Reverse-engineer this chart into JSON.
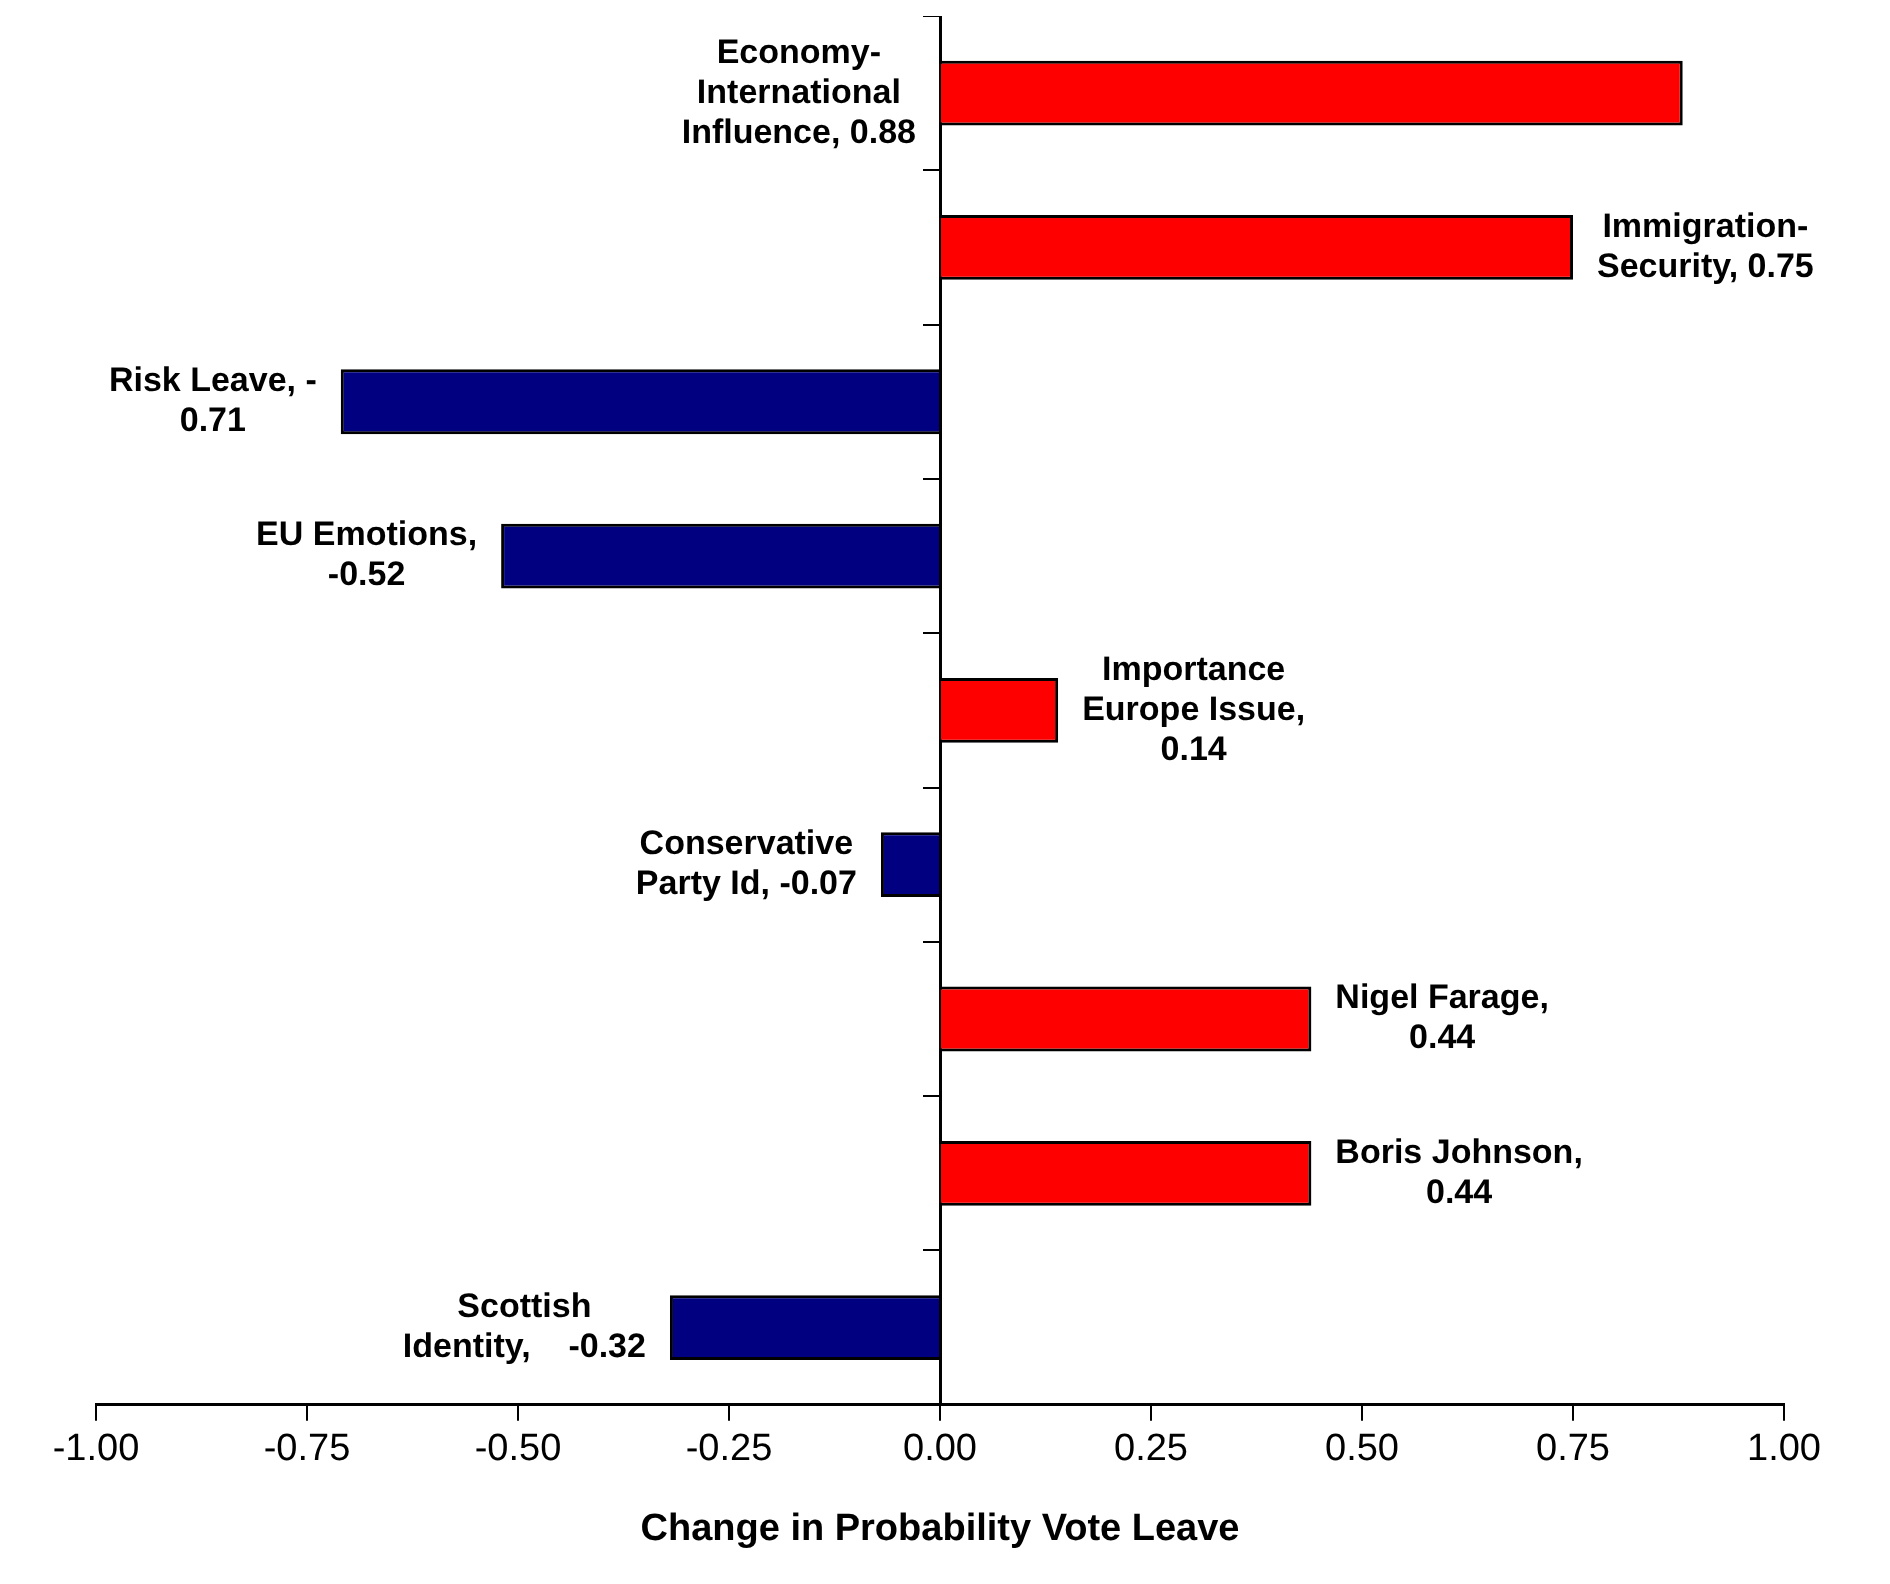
{
  "chart_data": {
    "type": "bar",
    "orientation": "horizontal",
    "xlabel": "Change in Probability Vote Leave",
    "categories": [
      null,
      null,
      null,
      null,
      null,
      null,
      null,
      null,
      null
    ],
    "values": [
      0.88,
      0.75,
      -0.71,
      -0.52,
      0.14,
      -0.07,
      0.44,
      0.44,
      -0.32
    ],
    "colors": [
      "#ff0000",
      "#ff0000",
      "#000080",
      "#000080",
      "#ff0000",
      "#000080",
      "#ff0000",
      "#ff0000",
      "#000080"
    ],
    "value_labels": [
      "Economy-\nInternational\nInfluence, 0.88",
      "Immigration-\nSecurity, 0.75",
      "Risk Leave, -\n0.71",
      "EU Emotions,\n-0.52",
      "Importance\nEurope Issue,\n0.14",
      "Conservative\nParty Id, -0.07",
      "Nigel Farage,\n0.44",
      "Boris Johnson,\n0.44",
      "Scottish\nIdentity,    -0.32"
    ],
    "xlim": [
      -1,
      1
    ],
    "xticks": [
      {
        "value": -1,
        "label": "-1.00"
      },
      {
        "value": -0.75,
        "label": "-0.75"
      },
      {
        "value": -0.5,
        "label": "-0.50"
      },
      {
        "value": -0.25,
        "label": "-0.25"
      },
      {
        "value": 0,
        "label": "0.00"
      },
      {
        "value": 0.25,
        "label": "0.25"
      },
      {
        "value": 0.5,
        "label": "0.50"
      },
      {
        "value": 0.75,
        "label": "0.75"
      },
      {
        "value": 1,
        "label": "1.00"
      }
    ],
    "tick_labels": "x",
    "legend": false
  }
}
